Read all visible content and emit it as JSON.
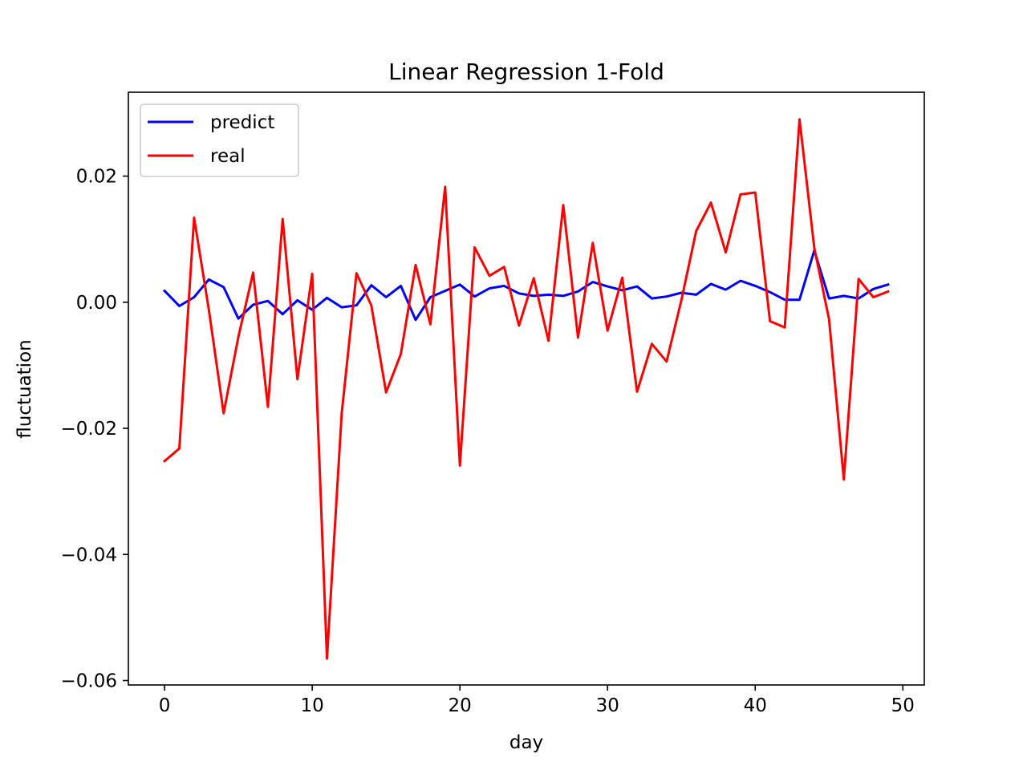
{
  "chart_data": {
    "type": "line",
    "title": "Linear Regression 1-Fold",
    "xlabel": "day",
    "ylabel": "fluctuation",
    "xlim": [
      -2.45,
      51.45
    ],
    "ylim": [
      -0.0607,
      0.0333
    ],
    "xticks": [
      0,
      10,
      20,
      30,
      40,
      50
    ],
    "xtick_labels": [
      "0",
      "10",
      "20",
      "30",
      "40",
      "50"
    ],
    "yticks": [
      -0.06,
      -0.04,
      -0.02,
      0.0,
      0.02
    ],
    "ytick_labels": [
      "−0.06",
      "−0.04",
      "−0.02",
      "0.00",
      "0.02"
    ],
    "grid": false,
    "legend_position": "upper left",
    "x": [
      0,
      1,
      2,
      3,
      4,
      5,
      6,
      7,
      8,
      9,
      10,
      11,
      12,
      13,
      14,
      15,
      16,
      17,
      18,
      19,
      20,
      21,
      22,
      23,
      24,
      25,
      26,
      27,
      28,
      29,
      30,
      31,
      32,
      33,
      34,
      35,
      36,
      37,
      38,
      39,
      40,
      41,
      42,
      43,
      44,
      45,
      46,
      47,
      48,
      49
    ],
    "series": [
      {
        "name": "predict",
        "color": "#0000ff",
        "values": [
          0.0018,
          -0.0006,
          0.0008,
          0.0036,
          0.0024,
          -0.0026,
          -0.0004,
          0.0002,
          -0.0019,
          0.0003,
          -0.0012,
          0.0007,
          -0.0008,
          -0.0005,
          0.0027,
          0.0008,
          0.0026,
          -0.0028,
          0.0008,
          0.0018,
          0.0028,
          0.0009,
          0.0022,
          0.0026,
          0.0014,
          0.001,
          0.0012,
          0.001,
          0.0017,
          0.0032,
          0.0025,
          0.0019,
          0.0025,
          0.0006,
          0.0009,
          0.0015,
          0.0012,
          0.0029,
          0.002,
          0.0034,
          0.0026,
          0.0016,
          0.0004,
          0.0004,
          0.0082,
          0.0006,
          0.001,
          0.0006,
          0.0021,
          0.0028
        ]
      },
      {
        "name": "real",
        "color": "#ff0000",
        "values": [
          -0.0252,
          -0.0232,
          0.0134,
          -0.0012,
          -0.0176,
          -0.0055,
          0.0047,
          -0.0166,
          0.0132,
          -0.0122,
          0.0045,
          -0.0565,
          -0.0176,
          0.0046,
          -0.0005,
          -0.0143,
          -0.0082,
          0.0059,
          -0.0035,
          0.0183,
          -0.0259,
          0.0087,
          0.0042,
          0.0056,
          -0.0037,
          0.0038,
          -0.0061,
          0.0154,
          -0.0056,
          0.0094,
          -0.0045,
          0.0039,
          -0.0142,
          -0.0066,
          -0.0094,
          0.0003,
          0.0113,
          0.0158,
          0.0079,
          0.0171,
          0.0174,
          -0.003,
          -0.004,
          0.029,
          0.0086,
          -0.0027,
          -0.0281,
          0.0037,
          0.0008,
          0.0017
        ]
      }
    ]
  }
}
